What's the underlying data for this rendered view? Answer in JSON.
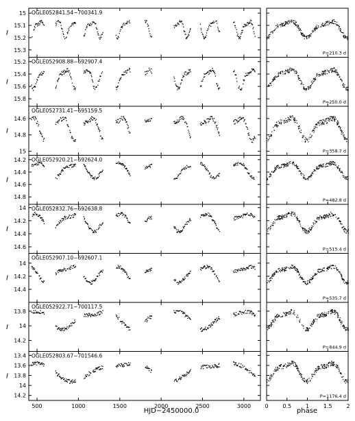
{
  "figure": {
    "xlabel_left": "HJD−2450000.0",
    "xlabel_right": "phase",
    "ylabel": "I"
  },
  "chart_data": [
    {
      "type": "scatter",
      "label": "OGLE052841.54−700341.9",
      "period_text": "P=210.3 d",
      "period": 210.3,
      "ylim": [
        15.36,
        14.96
      ],
      "yticks": [
        15,
        15.1,
        15.2,
        15.3
      ],
      "amp": 0.11,
      "mean": 15.12,
      "xlim": [
        400,
        3200
      ],
      "phase_xlim": [
        0,
        2
      ]
    },
    {
      "type": "scatter",
      "label": "OGLE052908.88−692907.4",
      "period_text": "P=250.0 d",
      "period": 250.0,
      "ylim": [
        15.92,
        15.13
      ],
      "yticks": [
        15.2,
        15.4,
        15.6,
        15.8
      ],
      "amp": 0.25,
      "mean": 15.45,
      "xlim": [
        400,
        3200
      ],
      "phase_xlim": [
        0,
        2
      ]
    },
    {
      "type": "scatter",
      "label": "OGLE052731.41−695159.5",
      "period_text": "P=358.7 d",
      "period": 358.7,
      "ylim": [
        15.05,
        14.45
      ],
      "yticks": [
        14.6,
        14.8,
        15
      ],
      "amp": 0.22,
      "mean": 14.7,
      "xlim": [
        400,
        3200
      ],
      "phase_xlim": [
        0,
        2
      ]
    },
    {
      "type": "scatter",
      "label": "OGLE052920.21−692624.0",
      "period_text": "P=482.8 d",
      "period": 482.8,
      "ylim": [
        14.92,
        14.13
      ],
      "yticks": [
        14.2,
        14.4,
        14.6,
        14.8
      ],
      "amp": 0.2,
      "mean": 14.35,
      "xlim": [
        400,
        3200
      ],
      "phase_xlim": [
        0,
        2
      ]
    },
    {
      "type": "scatter",
      "label": "OGLE052832.76−692638.8",
      "period_text": "P=515.4 d",
      "period": 515.4,
      "ylim": [
        14.7,
        13.95
      ],
      "yticks": [
        14,
        14.2,
        14.4,
        14.6
      ],
      "amp": 0.22,
      "mean": 14.2,
      "xlim": [
        400,
        3200
      ],
      "phase_xlim": [
        0,
        2
      ]
    },
    {
      "type": "scatter",
      "label": "OGLE052907.10−692607.1",
      "period_text": "P=535.7 d",
      "period": 535.7,
      "ylim": [
        14.6,
        13.85
      ],
      "yticks": [
        14,
        14.2,
        14.4
      ],
      "amp": 0.2,
      "mean": 14.15,
      "xlim": [
        400,
        3200
      ],
      "phase_xlim": [
        0,
        2
      ]
    },
    {
      "type": "scatter",
      "label": "OGLE052922.71−700117.5",
      "period_text": "P=844.9 d",
      "period": 844.9,
      "ylim": [
        14.35,
        13.68
      ],
      "yticks": [
        13.8,
        14,
        14.2
      ],
      "amp": 0.2,
      "mean": 13.9,
      "xlim": [
        400,
        3200
      ],
      "phase_xlim": [
        0,
        2
      ]
    },
    {
      "type": "scatter",
      "label": "OGLE052803.67−701546.6",
      "period_text": "P=1176.4 d",
      "period": 1176.4,
      "ylim": [
        14.3,
        13.32
      ],
      "yticks": [
        13.4,
        13.6,
        13.8,
        14,
        14.2
      ],
      "amp": 0.3,
      "mean": 13.7,
      "xlim": [
        400,
        3200
      ],
      "phase_xlim": [
        0,
        2
      ]
    }
  ],
  "x_axis": {
    "ticks": [
      500,
      1000,
      1500,
      2000,
      2500,
      3000
    ],
    "range": [
      400,
      3200
    ]
  },
  "phase_axis": {
    "ticks": [
      "0",
      "0.5",
      "1",
      "1.5",
      "2"
    ],
    "range": [
      0,
      2
    ]
  }
}
